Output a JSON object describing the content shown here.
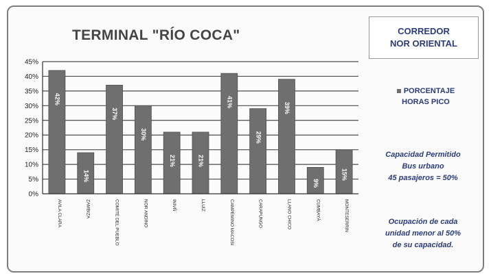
{
  "title": "TERMINAL \"RÍO COCA\"",
  "corridor": [
    "CORREDOR",
    "NOR ORIENTAL"
  ],
  "legend": [
    "PORCENTAJE",
    "HORAS PICO"
  ],
  "capacity_note": [
    "Capacidad Permitido",
    "Bus urbano",
    "45 pasajeros = 50%"
  ],
  "occupancy_note": [
    "Ocupación de cada",
    "unidad menor al 50%",
    "de su capacidad."
  ],
  "colors": {
    "bar": "#6f6f6f",
    "text_accent": "#2b3c78",
    "background": "#fbfbfb"
  },
  "chart_data": {
    "type": "bar",
    "title": "TERMINAL \"RÍO COCA\"",
    "categories": [
      "AVILA CLARA",
      "ZAMBIZA",
      "COMITÉ DEL PUEBLO",
      "NOR ANDINO",
      "INIVÑ",
      "LLUIZ",
      "CAMPEMINO MACOSI",
      "CARAPUNGO",
      "LLANO CHICO",
      "CUMBAYÁ",
      "MONTESERRIN"
    ],
    "series": [
      {
        "name": "PORCENTAJE HORAS PICO",
        "values": [
          42,
          14,
          37,
          30,
          21,
          21,
          41,
          29,
          39,
          9,
          15
        ],
        "labels": [
          "42%",
          "14%",
          "37%",
          "30%",
          "21%",
          "21%",
          "41%",
          "29%",
          "39%",
          "9%",
          "15%"
        ]
      }
    ],
    "ylim": [
      0,
      45
    ],
    "yticks": [
      "0%",
      "5%",
      "10%",
      "15%",
      "20%",
      "25%",
      "30%",
      "35%",
      "40%",
      "45%"
    ],
    "grid": true,
    "legend_position": "right"
  }
}
